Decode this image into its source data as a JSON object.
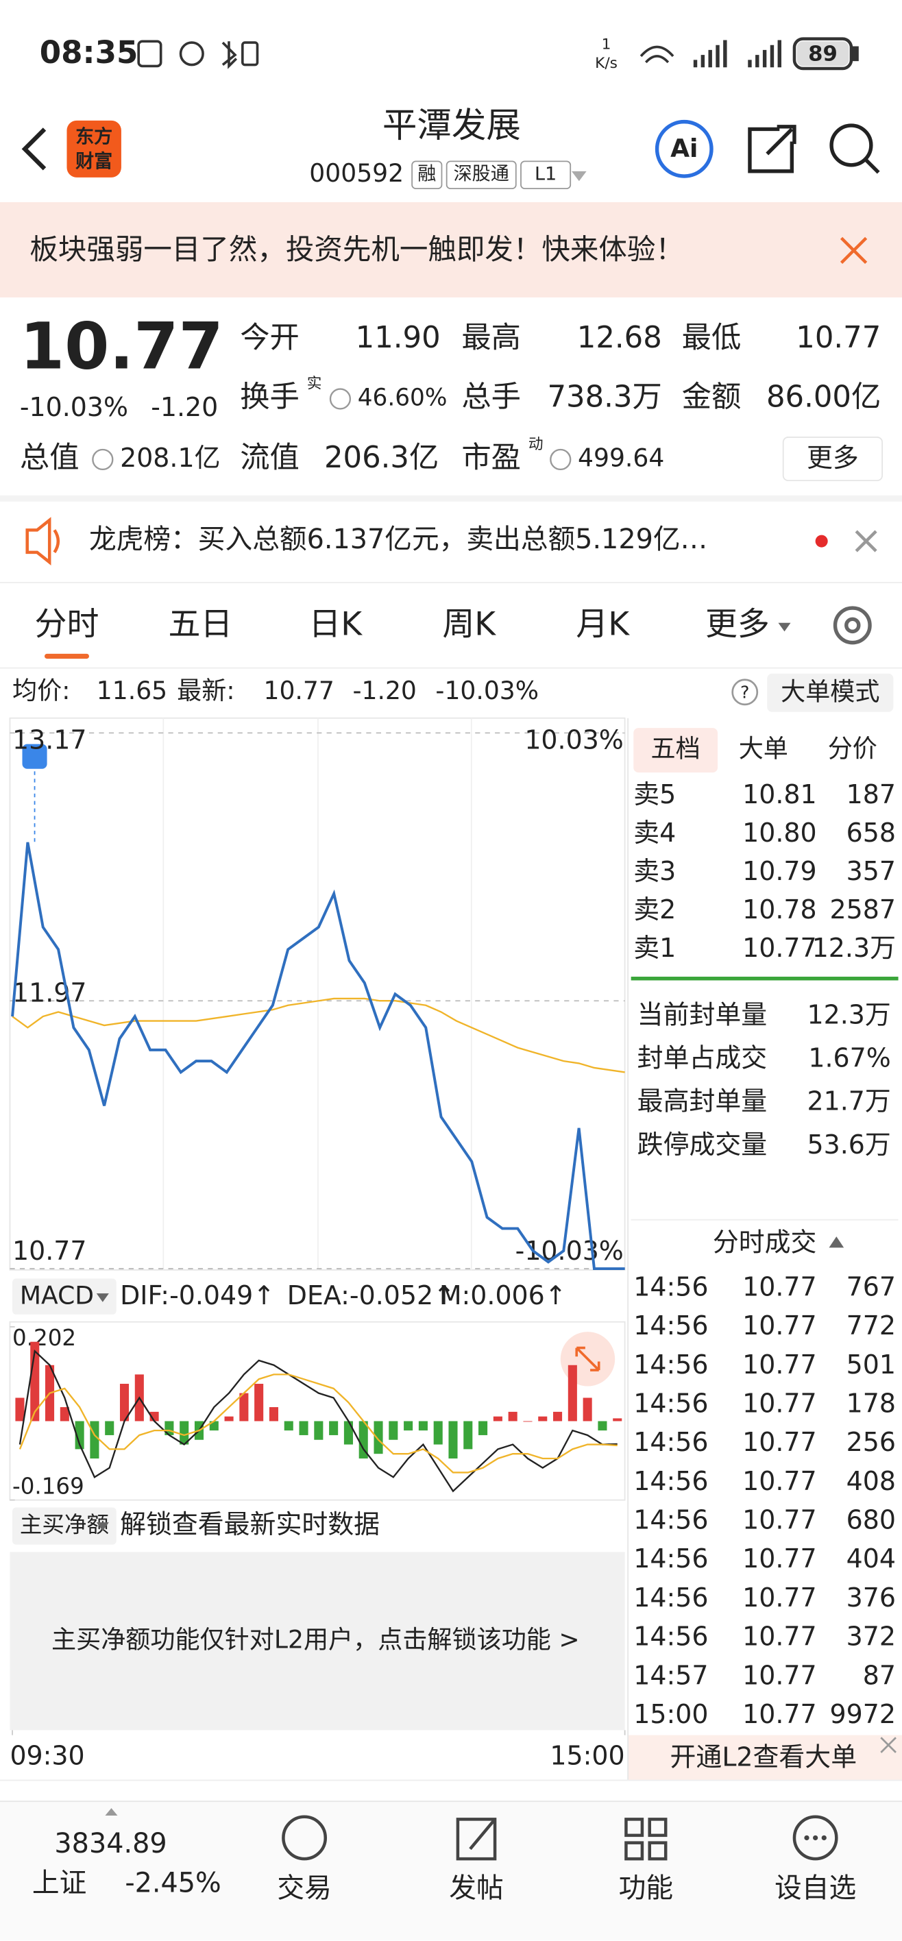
{
  "status_bar": {
    "time": "08:35",
    "net_speed": "1",
    "net_speed_unit": "K/s",
    "battery": "89"
  },
  "header": {
    "logo": [
      "东方",
      "财富"
    ],
    "title": "平潭发展",
    "code": "000592",
    "tags": [
      "融",
      "深股通",
      "L1"
    ],
    "ai": "Ai"
  },
  "banner": {
    "text": "板块强弱一目了然，投资先机一触即发！快来体验！"
  },
  "quote": {
    "price": "10.77",
    "change_pct": "-10.03%",
    "change": "-1.20",
    "fields": [
      {
        "label": "今开",
        "value": "11.90"
      },
      {
        "label": "最高",
        "value": "12.68"
      },
      {
        "label": "最低",
        "value": "10.77"
      },
      {
        "label": "换手",
        "note": "实",
        "value": "46.60%"
      },
      {
        "label": "总手",
        "value": "738.3万"
      },
      {
        "label": "金额",
        "value": "86.00亿"
      },
      {
        "label": "总值",
        "value": "208.1亿"
      },
      {
        "label": "流值",
        "value": "206.3亿"
      },
      {
        "label": "市盈",
        "note": "动",
        "value": "499.64"
      }
    ],
    "more": "更多"
  },
  "notice": {
    "text": "龙虎榜：买入总额6.137亿元，卖出总额5.129亿…"
  },
  "tabs": {
    "items": [
      "分时",
      "五日",
      "日K",
      "周K",
      "月K",
      "更多"
    ],
    "active": 0
  },
  "info": {
    "avg_label": "均价:",
    "avg": "11.65",
    "latest_label": "最新:",
    "latest": "10.77",
    "change": "-1.20",
    "change_pct": "-10.03%",
    "mode": "大单模式"
  },
  "chart_data": [
    {
      "type": "line",
      "xlim": [
        0,
        240
      ],
      "xticks": [
        {
          "value": 0,
          "label": "09:30"
        },
        {
          "value": 240,
          "label": "15:00"
        }
      ],
      "ylim": [
        10.77,
        13.17
      ],
      "yticks": [
        10.77,
        11.97,
        13.17
      ],
      "y2lim": [
        -10.03,
        10.03
      ],
      "y2ticks": [
        {
          "value": -10.03,
          "label": "-10.03%"
        },
        {
          "value": 10.03,
          "label": "10.03%"
        }
      ],
      "grid": true,
      "x": [
        0,
        6,
        12,
        18,
        24,
        30,
        36,
        42,
        48,
        54,
        60,
        66,
        72,
        78,
        84,
        90,
        96,
        102,
        108,
        114,
        120,
        126,
        132,
        138,
        144,
        150,
        156,
        162,
        168,
        174,
        180,
        186,
        192,
        198,
        204,
        210,
        216,
        222,
        228,
        234,
        240
      ],
      "series": [
        {
          "color": "#2f6fbf",
          "values": [
            11.9,
            12.68,
            12.3,
            12.2,
            11.85,
            11.75,
            11.5,
            11.8,
            11.9,
            11.75,
            11.75,
            11.65,
            11.7,
            11.7,
            11.65,
            11.75,
            11.85,
            11.95,
            12.2,
            12.25,
            12.3,
            12.45,
            12.15,
            12.05,
            11.85,
            12.0,
            11.95,
            11.85,
            11.45,
            11.35,
            11.25,
            11.0,
            10.95,
            10.95,
            10.85,
            10.8,
            10.85,
            11.4,
            10.77,
            10.77,
            10.77
          ]
        },
        {
          "color": "#f0b429",
          "values": [
            11.9,
            11.85,
            11.9,
            11.92,
            11.9,
            11.88,
            11.86,
            11.87,
            11.88,
            11.88,
            11.88,
            11.88,
            11.88,
            11.89,
            11.9,
            11.91,
            11.92,
            11.93,
            11.95,
            11.96,
            11.97,
            11.98,
            11.98,
            11.98,
            11.97,
            11.97,
            11.96,
            11.95,
            11.92,
            11.88,
            11.85,
            11.82,
            11.79,
            11.76,
            11.74,
            11.72,
            11.7,
            11.69,
            11.67,
            11.66,
            11.65
          ]
        }
      ]
    },
    {
      "type": "macd",
      "ylim": [
        -0.169,
        0.202
      ],
      "yticks": [
        -0.169,
        0.202
      ],
      "histogram": {
        "up_color": "#e03c3c",
        "down_color": "#3aa53a",
        "values": [
          0.05,
          0.17,
          0.12,
          0.03,
          -0.06,
          -0.08,
          -0.03,
          0.08,
          0.1,
          0.02,
          -0.03,
          -0.05,
          -0.04,
          -0.02,
          0.01,
          0.06,
          0.08,
          0.03,
          -0.02,
          -0.03,
          -0.04,
          -0.03,
          -0.05,
          -0.08,
          -0.07,
          -0.04,
          -0.02,
          -0.02,
          -0.05,
          -0.08,
          -0.06,
          -0.03,
          0.01,
          0.02,
          0,
          0.01,
          0.02,
          0.12,
          0.05,
          -0.02,
          0.006
        ]
      },
      "series": [
        {
          "color": "#222222",
          "values": [
            -0.05,
            0.15,
            0.12,
            0.05,
            -0.05,
            -0.12,
            -0.1,
            0,
            0.05,
            0,
            -0.03,
            -0.05,
            -0.02,
            0.03,
            0.06,
            0.1,
            0.13,
            0.12,
            0.1,
            0.08,
            0.06,
            0.05,
            0,
            -0.06,
            -0.1,
            -0.12,
            -0.08,
            -0.05,
            -0.1,
            -0.15,
            -0.12,
            -0.09,
            -0.06,
            -0.05,
            -0.08,
            -0.1,
            -0.08,
            -0.02,
            -0.03,
            -0.05,
            -0.049
          ]
        },
        {
          "color": "#f0b429",
          "values": [
            -0.06,
            0.02,
            0.06,
            0.07,
            0.03,
            -0.03,
            -0.06,
            -0.06,
            -0.03,
            -0.02,
            -0.02,
            -0.03,
            -0.02,
            0,
            0.03,
            0.06,
            0.09,
            0.1,
            0.1,
            0.09,
            0.08,
            0.07,
            0.04,
            0,
            -0.04,
            -0.07,
            -0.07,
            -0.06,
            -0.08,
            -0.11,
            -0.11,
            -0.1,
            -0.08,
            -0.07,
            -0.07,
            -0.08,
            -0.08,
            -0.06,
            -0.05,
            -0.05,
            -0.052
          ]
        }
      ]
    }
  ],
  "macd_header": {
    "selector": "MACD",
    "dif": "DIF:-0.049↑",
    "dea": "DEA:-0.052↑",
    "m": "M:0.006↑"
  },
  "net_buy": {
    "selector": "主买净额",
    "hint": "解锁查看最新实时数据",
    "locked_text": "主买净额功能仅针对L2用户，点击解锁该功能 >"
  },
  "order_book": {
    "tabs": [
      "五档",
      "大单",
      "分价"
    ],
    "asks": [
      {
        "label": "卖5",
        "price": "10.81",
        "volume": "187"
      },
      {
        "label": "卖4",
        "price": "10.80",
        "volume": "658"
      },
      {
        "label": "卖3",
        "price": "10.79",
        "volume": "357"
      },
      {
        "label": "卖2",
        "price": "10.78",
        "volume": "2587"
      },
      {
        "label": "卖1",
        "price": "10.77",
        "volume": "12.3万"
      }
    ],
    "seal": [
      {
        "label": "当前封单量",
        "value": "12.3万"
      },
      {
        "label": "封单占成交",
        "value": "1.67%"
      },
      {
        "label": "最高封单量",
        "value": "21.7万"
      },
      {
        "label": "跌停成交量",
        "value": "53.6万"
      }
    ]
  },
  "trades": {
    "title": "分时成交",
    "rows": [
      [
        "14:56",
        "10.77",
        "767"
      ],
      [
        "14:56",
        "10.77",
        "772"
      ],
      [
        "14:56",
        "10.77",
        "501"
      ],
      [
        "14:56",
        "10.77",
        "178"
      ],
      [
        "14:56",
        "10.77",
        "256"
      ],
      [
        "14:56",
        "10.77",
        "408"
      ],
      [
        "14:56",
        "10.77",
        "680"
      ],
      [
        "14:56",
        "10.77",
        "404"
      ],
      [
        "14:56",
        "10.77",
        "376"
      ],
      [
        "14:56",
        "10.77",
        "372"
      ],
      [
        "14:57",
        "10.77",
        "87"
      ],
      [
        "15:00",
        "10.77",
        "9972"
      ]
    ],
    "footer": "开通L2查看大单"
  },
  "bottom_nav": {
    "index_value": "3834.89",
    "index_name": "上证",
    "index_change": "-2.45%",
    "items": [
      "交易",
      "发帖",
      "功能",
      "设自选"
    ]
  }
}
